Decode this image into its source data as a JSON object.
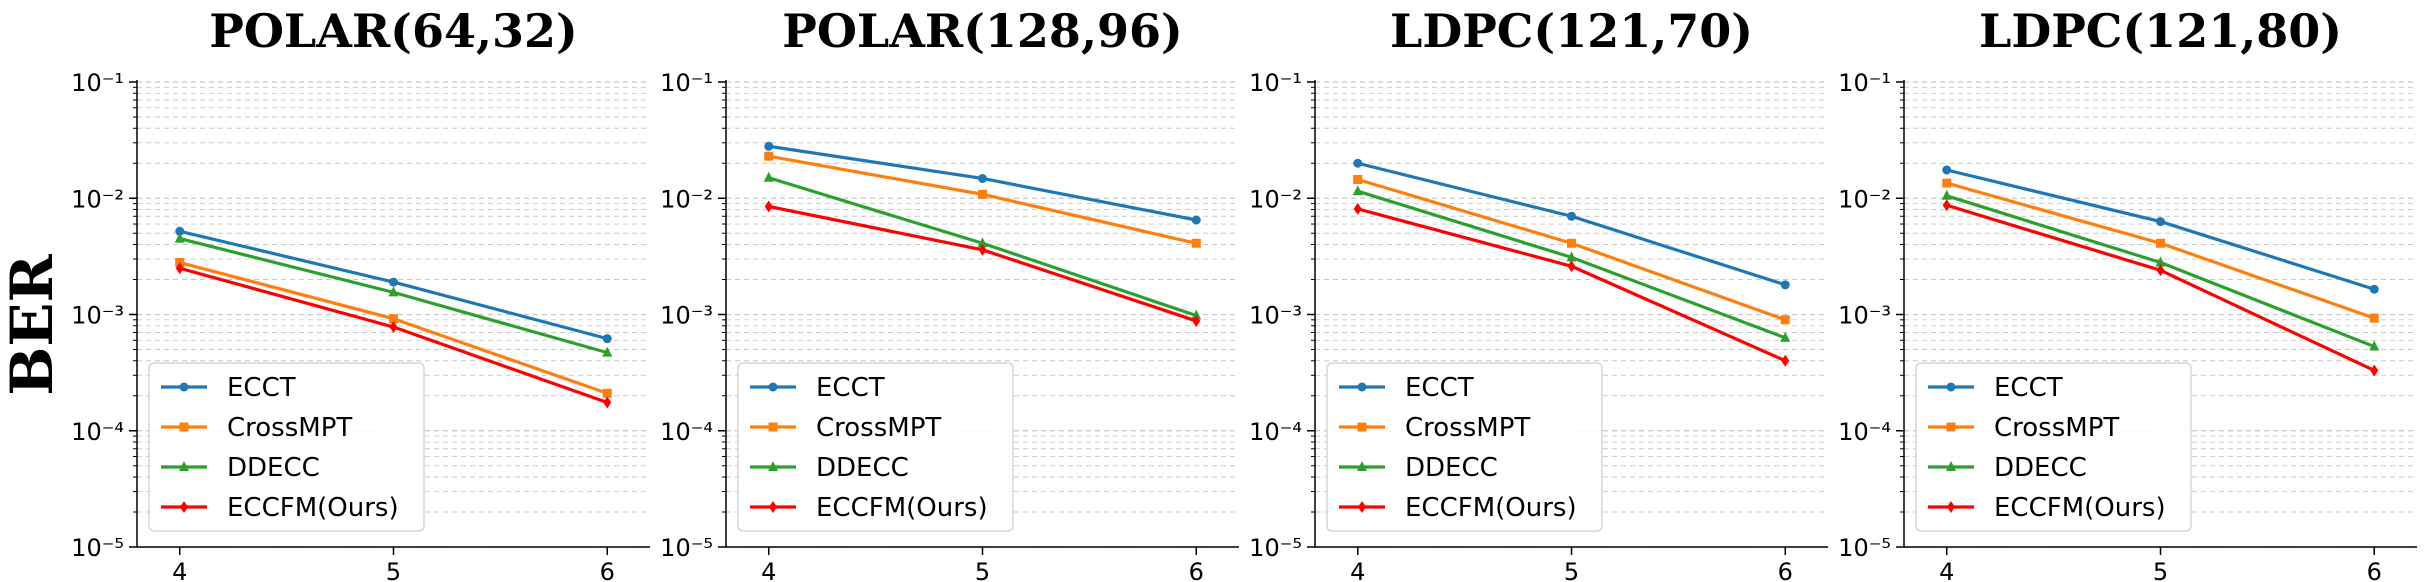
{
  "ylabel": "BER",
  "colors": {
    "ECCT": "#1f77b4",
    "CrossMPT": "#ff7f0e",
    "DDECC": "#2ca02c",
    "ECCFM(Ours)": "#ff0000",
    "grid": "#c8c8c8",
    "axis": "#000000"
  },
  "chart_data": [
    {
      "type": "line",
      "title": "POLAR(64,32)",
      "x": [
        4,
        5,
        6
      ],
      "xticks": [
        "4",
        "5",
        "6"
      ],
      "xlim": [
        3.8,
        6.2
      ],
      "yscale": "log",
      "ylim": [
        1e-05,
        0.1
      ],
      "yticks": [
        "10⁻⁵",
        "10⁻⁴",
        "10⁻³",
        "10⁻²",
        "10⁻¹"
      ],
      "ylabel": "BER",
      "legend": "lower-left",
      "grid": true,
      "series": [
        {
          "name": "ECCT",
          "marker": "circle",
          "values": [
            0.0052,
            0.0019,
            0.00062
          ]
        },
        {
          "name": "CrossMPT",
          "marker": "square",
          "values": [
            0.0028,
            0.00092,
            0.00021
          ]
        },
        {
          "name": "DDECC",
          "marker": "triangle",
          "values": [
            0.0045,
            0.00155,
            0.00047
          ]
        },
        {
          "name": "ECCFM(Ours)",
          "marker": "diamond",
          "values": [
            0.0025,
            0.00078,
            0.000175
          ]
        }
      ]
    },
    {
      "type": "line",
      "title": "POLAR(128,96)",
      "x": [
        4,
        5,
        6
      ],
      "xticks": [
        "4",
        "5",
        "6"
      ],
      "xlim": [
        3.8,
        6.2
      ],
      "yscale": "log",
      "ylim": [
        1e-05,
        0.1
      ],
      "yticks": [
        "10⁻⁵",
        "10⁻⁴",
        "10⁻³",
        "10⁻²",
        "10⁻¹"
      ],
      "ylabel": "",
      "legend": "lower-left",
      "grid": true,
      "series": [
        {
          "name": "ECCT",
          "marker": "circle",
          "values": [
            0.028,
            0.0148,
            0.0065
          ]
        },
        {
          "name": "CrossMPT",
          "marker": "square",
          "values": [
            0.023,
            0.0108,
            0.0041
          ]
        },
        {
          "name": "DDECC",
          "marker": "triangle",
          "values": [
            0.015,
            0.0041,
            0.00098
          ]
        },
        {
          "name": "ECCFM(Ours)",
          "marker": "diamond",
          "values": [
            0.0085,
            0.0036,
            0.00088
          ]
        }
      ]
    },
    {
      "type": "line",
      "title": "LDPC(121,70)",
      "x": [
        4,
        5,
        6
      ],
      "xticks": [
        "4",
        "5",
        "6"
      ],
      "xlim": [
        3.8,
        6.2
      ],
      "yscale": "log",
      "ylim": [
        1e-05,
        0.1
      ],
      "yticks": [
        "10⁻⁵",
        "10⁻⁴",
        "10⁻³",
        "10⁻²",
        "10⁻¹"
      ],
      "ylabel": "",
      "legend": "lower-left",
      "grid": true,
      "series": [
        {
          "name": "ECCT",
          "marker": "circle",
          "values": [
            0.02,
            0.007,
            0.0018
          ]
        },
        {
          "name": "CrossMPT",
          "marker": "square",
          "values": [
            0.0145,
            0.0041,
            0.0009
          ]
        },
        {
          "name": "DDECC",
          "marker": "triangle",
          "values": [
            0.0115,
            0.0031,
            0.00063
          ]
        },
        {
          "name": "ECCFM(Ours)",
          "marker": "diamond",
          "values": [
            0.0081,
            0.0026,
            0.0004
          ]
        }
      ]
    },
    {
      "type": "line",
      "title": "LDPC(121,80)",
      "x": [
        4,
        5,
        6
      ],
      "xticks": [
        "4",
        "5",
        "6"
      ],
      "xlim": [
        3.8,
        6.2
      ],
      "yscale": "log",
      "ylim": [
        1e-05,
        0.1
      ],
      "yticks": [
        "10⁻⁵",
        "10⁻⁴",
        "10⁻³",
        "10⁻²",
        "10⁻¹"
      ],
      "ylabel": "",
      "legend": "lower-left",
      "grid": true,
      "series": [
        {
          "name": "ECCT",
          "marker": "circle",
          "values": [
            0.0175,
            0.0063,
            0.00165
          ]
        },
        {
          "name": "CrossMPT",
          "marker": "square",
          "values": [
            0.0135,
            0.0041,
            0.00093
          ]
        },
        {
          "name": "DDECC",
          "marker": "triangle",
          "values": [
            0.0105,
            0.0028,
            0.00053
          ]
        },
        {
          "name": "ECCFM(Ours)",
          "marker": "diamond",
          "values": [
            0.0087,
            0.0024,
            0.00033
          ]
        }
      ]
    }
  ]
}
